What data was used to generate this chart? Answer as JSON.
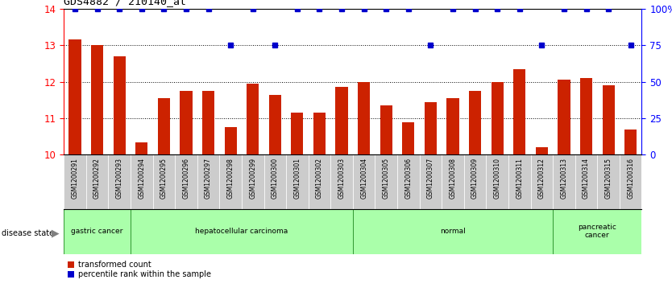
{
  "title": "GDS4882 / 210140_at",
  "samples": [
    "GSM1200291",
    "GSM1200292",
    "GSM1200293",
    "GSM1200294",
    "GSM1200295",
    "GSM1200296",
    "GSM1200297",
    "GSM1200298",
    "GSM1200299",
    "GSM1200300",
    "GSM1200301",
    "GSM1200302",
    "GSM1200303",
    "GSM1200304",
    "GSM1200305",
    "GSM1200306",
    "GSM1200307",
    "GSM1200308",
    "GSM1200309",
    "GSM1200310",
    "GSM1200311",
    "GSM1200312",
    "GSM1200313",
    "GSM1200314",
    "GSM1200315",
    "GSM1200316"
  ],
  "transformed_count": [
    13.15,
    13.0,
    12.7,
    10.35,
    11.55,
    11.75,
    11.75,
    10.75,
    11.95,
    11.65,
    11.15,
    11.15,
    11.85,
    12.0,
    11.35,
    10.9,
    11.45,
    11.55,
    11.75,
    12.0,
    12.35,
    10.2,
    12.05,
    12.1,
    11.9,
    10.7
  ],
  "percentile_rank": [
    100,
    100,
    100,
    100,
    100,
    100,
    100,
    75,
    100,
    75,
    100,
    100,
    100,
    100,
    100,
    100,
    75,
    100,
    100,
    100,
    100,
    75,
    100,
    100,
    100,
    75
  ],
  "disease_groups": [
    {
      "label": "gastric cancer",
      "start": 0,
      "end": 3
    },
    {
      "label": "hepatocellular carcinoma",
      "start": 3,
      "end": 13
    },
    {
      "label": "normal",
      "start": 13,
      "end": 22
    },
    {
      "label": "pancreatic\ncancer",
      "start": 22,
      "end": 26
    }
  ],
  "ylim_left": [
    10,
    14
  ],
  "ylim_right": [
    0,
    100
  ],
  "yticks_left": [
    10,
    11,
    12,
    13,
    14
  ],
  "yticks_right": [
    0,
    25,
    50,
    75,
    100
  ],
  "bar_color": "#cc2200",
  "dot_color": "#0000cc",
  "background_color": "#ffffff",
  "tick_bg_color": "#cccccc",
  "disease_color_light": "#bbffbb",
  "disease_color_dark": "#66dd66",
  "disease_border_color": "#44aa44"
}
